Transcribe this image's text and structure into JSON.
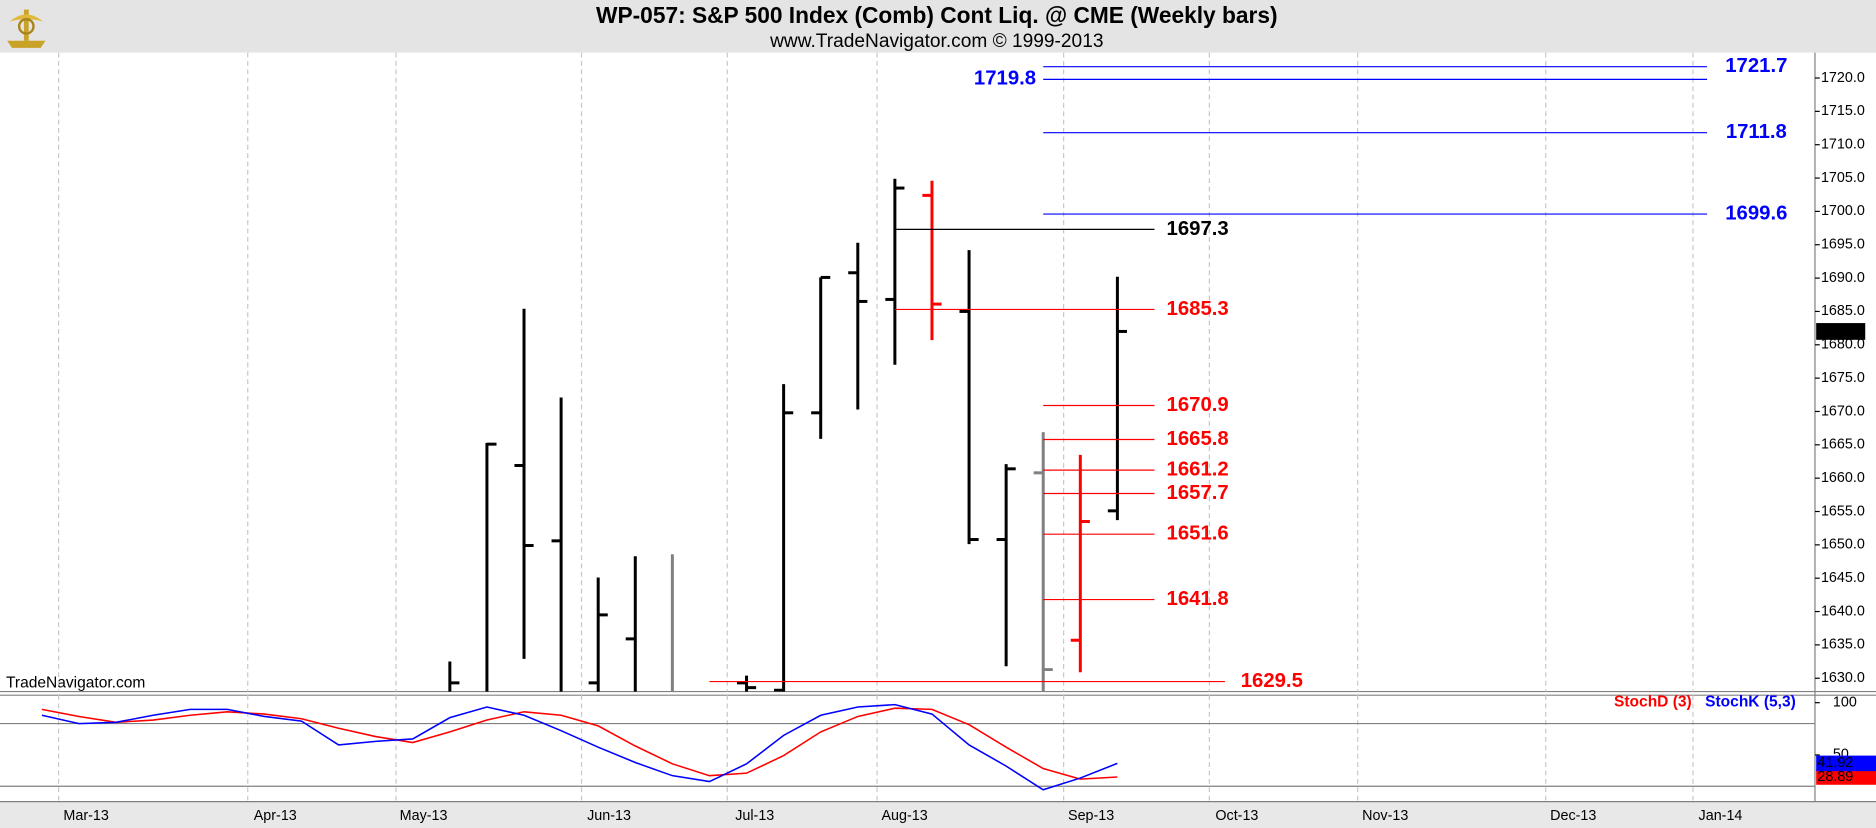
{
  "chart_data": [
    {
      "type": "ohlc",
      "title": "WP-057:  S&P 500 Index (Comb) Cont Liq. @ CME  (Weekly bars)",
      "subtitle": "www.TradeNavigator.com © 1999-2013",
      "watermark": "TradeNavigator.com",
      "x": [
        0,
        1,
        2,
        3,
        4,
        5,
        6,
        8,
        9,
        10,
        11,
        12,
        13,
        14,
        15,
        16,
        17,
        18
      ],
      "open": [
        null,
        null,
        1661.9,
        1650.6,
        1629.3,
        1635.9,
        null,
        1629.3,
        1628.2,
        1669.8,
        1690.8,
        1686.8,
        1702.4,
        1685.0,
        1650.8,
        1660.8,
        1635.7,
        1655.1
      ],
      "high": [
        1632.5,
        1665.3,
        1685.4,
        1672.1,
        1645.1,
        1648.3,
        1648.6,
        1630.4,
        1674.1,
        1690.1,
        1695.3,
        1704.9,
        1704.6,
        1694.2,
        1662.1,
        1666.9,
        1663.5,
        1690.2
      ],
      "low": [
        1626,
        1626,
        1632.9,
        1626,
        1626,
        1626,
        1626,
        1626,
        1626,
        1665.9,
        1670.3,
        1677.0,
        1680.7,
        1650.1,
        1631.8,
        1626,
        1630.9,
        1653.7
      ],
      "close": [
        1629.3,
        1665.1,
        1649.9,
        null,
        1639.5,
        null,
        null,
        1628.6,
        1669.8,
        1690.1,
        1686.5,
        1703.5,
        1686.1,
        1650.8,
        1661.4,
        1631.3,
        1653.5,
        1682.0
      ],
      "colors": [
        "#000000",
        "#000000",
        "#000000",
        "#000000",
        "#000000",
        "#000000",
        "#808080",
        "#000000",
        "#000000",
        "#000000",
        "#000000",
        "#000000",
        "#ff0000",
        "#000000",
        "#000000",
        "#808080",
        "#ff0000",
        "#000000"
      ],
      "last_price": {
        "value": 1682.0,
        "label": "1682.0"
      },
      "levels": [
        {
          "value": 1721.7,
          "color": "#0000ff"
        },
        {
          "value": 1719.8,
          "color": "#0000ff"
        },
        {
          "value": 1711.8,
          "color": "#0000ff"
        },
        {
          "value": 1699.6,
          "color": "#0000ff"
        },
        {
          "value": 1697.3,
          "color": "#000000"
        },
        {
          "value": 1685.3,
          "color": "#ff0000"
        },
        {
          "value": 1670.9,
          "color": "#ff0000"
        },
        {
          "value": 1665.8,
          "color": "#ff0000"
        },
        {
          "value": 1661.2,
          "color": "#ff0000"
        },
        {
          "value": 1657.7,
          "color": "#ff0000"
        },
        {
          "value": 1651.6,
          "color": "#ff0000"
        },
        {
          "value": 1641.8,
          "color": "#ff0000"
        },
        {
          "value": 1629.5,
          "color": "#ff0000"
        }
      ],
      "xlim": [
        -12.13,
        36.81
      ],
      "xticks": [
        {
          "value": -10.55,
          "label": "Mar-13"
        },
        {
          "value": -5.45,
          "label": "Apr-13"
        },
        {
          "value": -1.45,
          "label": "May-13"
        },
        {
          "value": 3.55,
          "label": "Jun-13"
        },
        {
          "value": 7.48,
          "label": "Jul-13"
        },
        {
          "value": 11.52,
          "label": "Aug-13"
        },
        {
          "value": 16.55,
          "label": "Sep-13"
        },
        {
          "value": 20.48,
          "label": "Oct-13"
        },
        {
          "value": 24.48,
          "label": "Nov-13"
        },
        {
          "value": 29.55,
          "label": "Dec-13"
        },
        {
          "value": 33.52,
          "label": "Jan-14"
        }
      ],
      "ylim": [
        1628.0,
        1723.8
      ],
      "yticks": [
        {
          "value": 1630,
          "label": "1630.0"
        },
        {
          "value": 1635,
          "label": "1635.0"
        },
        {
          "value": 1640,
          "label": "1640.0"
        },
        {
          "value": 1645,
          "label": "1645.0"
        },
        {
          "value": 1650,
          "label": "1650.0"
        },
        {
          "value": 1655,
          "label": "1655.0"
        },
        {
          "value": 1660,
          "label": "1660.0"
        },
        {
          "value": 1665,
          "label": "1665.0"
        },
        {
          "value": 1670,
          "label": "1670.0"
        },
        {
          "value": 1675,
          "label": "1675.0"
        },
        {
          "value": 1680,
          "label": "1680.0"
        },
        {
          "value": 1685,
          "label": "1685.0"
        },
        {
          "value": 1690,
          "label": "1690.0"
        },
        {
          "value": 1695,
          "label": "1695.0"
        },
        {
          "value": 1700,
          "label": "1700.0"
        },
        {
          "value": 1705,
          "label": "1705.0"
        },
        {
          "value": 1710,
          "label": "1710.0"
        },
        {
          "value": 1715,
          "label": "1715.0"
        },
        {
          "value": 1720,
          "label": "1720.0"
        }
      ],
      "grid": true
    },
    {
      "type": "line",
      "x": [
        -11,
        -10,
        -9,
        -8,
        -7,
        -6,
        -5,
        -4,
        -3,
        -2,
        -1,
        0,
        1,
        2,
        3,
        4,
        5,
        6,
        7,
        8,
        9,
        10,
        11,
        12,
        13,
        14,
        15,
        16,
        17,
        18
      ],
      "series": [
        {
          "name": "StochD (3)",
          "color": "#ff0000",
          "values": [
            93.6,
            86.8,
            81.2,
            83.4,
            88.0,
            91.3,
            89.1,
            84.6,
            75.5,
            67.6,
            61.9,
            72.1,
            83.4,
            91.3,
            88.0,
            77.8,
            58.5,
            41.5,
            30.2,
            32.5,
            49.4,
            72.1,
            86.8,
            94.7,
            93.6,
            78.9,
            57.4,
            37.0,
            26.8,
            28.89
          ]
        },
        {
          "name": "StochK (5,3)",
          "color": "#0000ff",
          "values": [
            88.0,
            80.0,
            81.2,
            88.0,
            93.6,
            93.6,
            86.8,
            82.3,
            59.6,
            63.0,
            65.3,
            85.7,
            95.9,
            88.0,
            73.2,
            57.4,
            42.7,
            30.2,
            24.5,
            41.5,
            68.7,
            88.0,
            95.9,
            98.1,
            89.1,
            59.6,
            39.3,
            16.6,
            27.9,
            41.92
          ]
        }
      ],
      "ylim": [
        5.3,
        107.2
      ],
      "yticks": [
        100,
        50
      ],
      "levels": [
        80,
        20
      ]
    }
  ]
}
